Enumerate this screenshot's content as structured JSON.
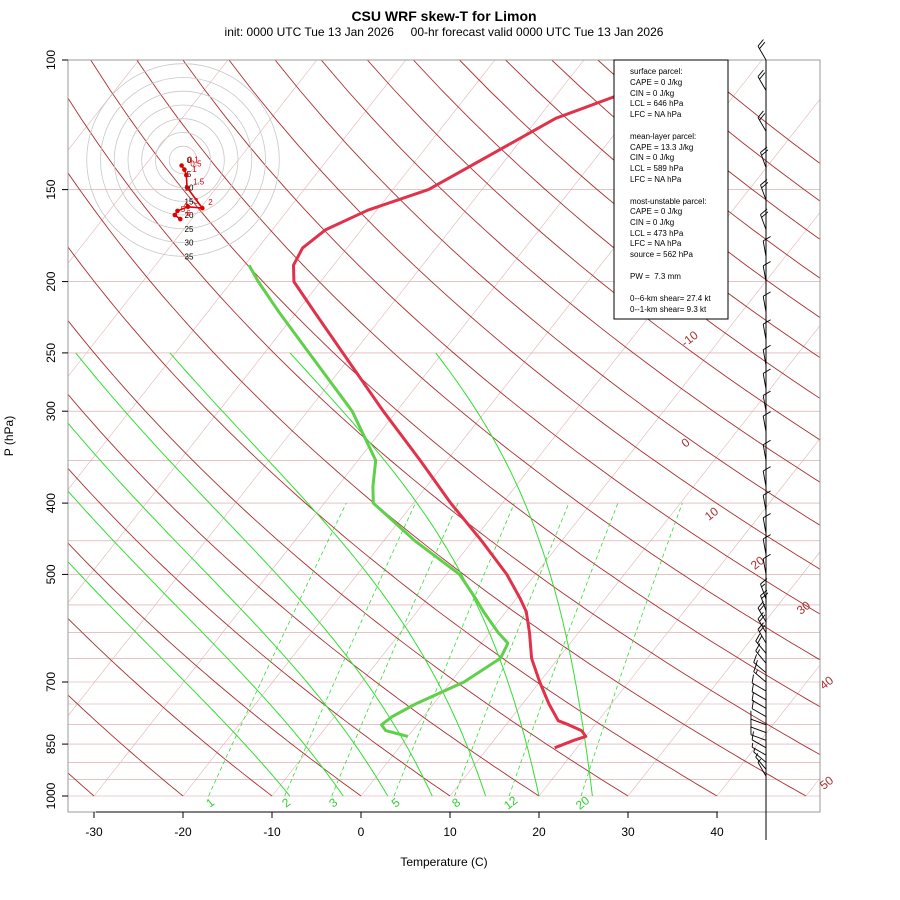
{
  "chart_data": {
    "type": "line",
    "title": "CSU WRF skew-T for Limon",
    "subtitle": "init: 0000 UTC Tue 13 Jan 2026     00-hr forecast valid 0000 UTC Tue 13 Jan 2026",
    "xlabel": "Temperature (C)",
    "ylabel": "P (hPa)",
    "xlim": [
      -33,
      52
    ],
    "ylim_hpa": [
      1000,
      100
    ],
    "log_pressure_axis": true,
    "x_ticks": [
      "-30",
      "-20",
      "-10",
      "0",
      "10",
      "20",
      "30",
      "40"
    ],
    "x_tick_values": [
      -30,
      -20,
      -10,
      0,
      10,
      20,
      30,
      40
    ],
    "y_ticks": [
      "100",
      "150",
      "200",
      "250",
      "300",
      "400",
      "500",
      "700",
      "850",
      "1000"
    ],
    "y_tick_values": [
      100,
      150,
      200,
      250,
      300,
      400,
      500,
      700,
      850,
      1000
    ],
    "isotherm_labels": [
      "-10",
      "0",
      "10",
      "20",
      "30",
      "40",
      "50"
    ],
    "isotherm_label_values": [
      -10,
      0,
      10,
      20,
      30,
      40,
      50
    ],
    "mixing_ratio_labels": [
      "1",
      "2",
      "3",
      "5",
      "8",
      "12",
      "20"
    ],
    "mixing_ratio_values": [
      1,
      2,
      3,
      5,
      8,
      12,
      20
    ],
    "colors": {
      "temperature": "#e0324a",
      "dewpoint": "#5fd04a",
      "dry_adiabat": "#a83030",
      "moist_adiabat": "#33dd33",
      "mixing_ratio": "#33dd33",
      "isobar": "#d8a0a0",
      "isotherm": "#e2b4b4",
      "hodograph": "#e00000"
    },
    "series": [
      {
        "name": "",
        "values_p": [
          860,
          840,
          830,
          815,
          800,
          790,
          750,
          700,
          650,
          600,
          562,
          540,
          500,
          450,
          400,
          350,
          300,
          250,
          220,
          200,
          190,
          180,
          170,
          160,
          150,
          120,
          110
        ],
        "values_t": [
          17.5,
          19.0,
          20.0,
          19.0,
          17.0,
          15.5,
          13.0,
          10.0,
          7.0,
          4.5,
          2.3,
          0.5,
          -3.2,
          -9.0,
          -15.8,
          -23.0,
          -31.5,
          -41.2,
          -48.0,
          -53.0,
          -54.5,
          -55.0,
          -54.0,
          -51.0,
          -46.0,
          -38.0,
          -32.0
        ]
      },
      {
        "name": "",
        "values_p": [
          830,
          815,
          800,
          780,
          750,
          700,
          650,
          620,
          600,
          562,
          540,
          500,
          450,
          400,
          380,
          350,
          300,
          250,
          220,
          200,
          190
        ],
        "values_t": [
          0.0,
          -3.0,
          -4.0,
          -3.5,
          -2.0,
          1.5,
          3.5,
          3.0,
          1.0,
          -2.5,
          -4.5,
          -8.5,
          -16.5,
          -24.5,
          -26.0,
          -28.0,
          -35.0,
          -45.0,
          -52.0,
          -57.0,
          -59.5
        ]
      }
    ],
    "hodograph": {
      "ring_labels": [
        "0",
        "5",
        "10",
        "15",
        "20",
        "25",
        "30",
        "35"
      ],
      "height_labels": [
        "0.1",
        "0.5",
        "1",
        "1.5",
        "2",
        "3",
        "4",
        "5",
        "6"
      ],
      "u": [
        -0.5,
        0.5,
        1.2,
        1.5,
        7.0,
        1.8,
        -2.0,
        -3.0,
        -1.0
      ],
      "v": [
        -2.0,
        -3.5,
        -5.5,
        -10.0,
        -17.5,
        -17.0,
        -18.5,
        -20.0,
        -21.5
      ]
    },
    "wind_barbs": {
      "p_hpa": [
        940,
        920,
        900,
        880,
        860,
        840,
        820,
        800,
        780,
        760,
        740,
        720,
        700,
        680,
        660,
        640,
        620,
        600,
        580,
        560,
        540,
        500,
        470,
        440,
        410,
        380,
        350,
        320,
        300,
        280,
        260,
        240,
        220,
        200,
        185,
        170,
        155,
        140,
        125,
        110,
        100
      ],
      "speed_kt": [
        5,
        5,
        5,
        5,
        10,
        10,
        10,
        10,
        10,
        10,
        10,
        10,
        15,
        15,
        15,
        20,
        20,
        20,
        20,
        20,
        15,
        10,
        10,
        10,
        10,
        10,
        10,
        10,
        10,
        10,
        10,
        10,
        10,
        10,
        10,
        20,
        20,
        20,
        20,
        20,
        20
      ],
      "dir_deg": [
        330,
        320,
        310,
        300,
        300,
        290,
        290,
        290,
        300,
        300,
        300,
        300,
        310,
        310,
        320,
        320,
        330,
        330,
        330,
        340,
        340,
        350,
        350,
        350,
        350,
        350,
        350,
        350,
        350,
        350,
        350,
        350,
        350,
        350,
        350,
        340,
        340,
        340,
        330,
        330,
        330
      ]
    }
  },
  "parcel_box": {
    "surface_header": "surface parcel:",
    "surface_lines": [
      "CAPE = 0 J/kg",
      "CIN = 0 J/kg",
      "LCL = 646 hPa",
      "LFC = NA hPa"
    ],
    "mean_layer_header": "mean-layer parcel:",
    "mean_layer_lines": [
      "CAPE = 13.3 J/kg",
      "CIN = 0 J/kg",
      "LCL = 589 hPa",
      "LFC = NA hPa"
    ],
    "most_unstable_header": "most-unstable parcel:",
    "most_unstable_lines": [
      "CAPE = 0 J/kg",
      "CIN = 0 J/kg",
      "LCL = 473 hPa",
      "LFC = NA hPa",
      "source = 562 hPa"
    ],
    "pw": "PW =  7.3 mm",
    "shear_lines": [
      "0--6-km shear= 27.4 kt",
      "0--1-km shear= 9.3 kt"
    ]
  }
}
